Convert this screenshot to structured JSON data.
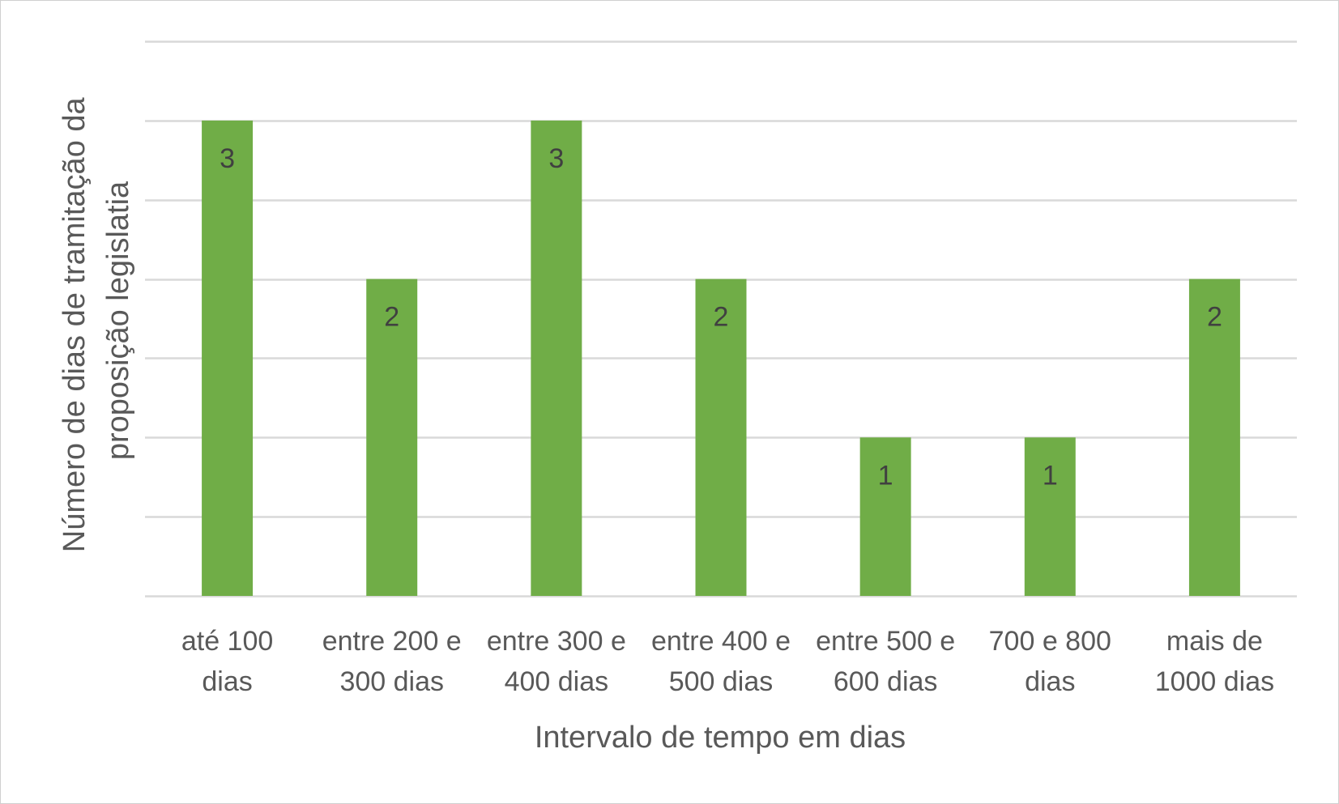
{
  "chart_data": {
    "type": "bar",
    "categories": [
      [
        "até  100",
        "dias"
      ],
      [
        "entre 200 e",
        "300 dias"
      ],
      [
        "entre 300 e",
        "400 dias"
      ],
      [
        "entre 400 e",
        "500 dias"
      ],
      [
        "entre 500 e",
        "600 dias"
      ],
      [
        "700 e 800",
        "dias"
      ],
      [
        "mais de",
        "1000 dias"
      ]
    ],
    "values": [
      3,
      2,
      3,
      2,
      1,
      1,
      2
    ],
    "data_labels": [
      "3",
      "2",
      "3",
      "2",
      "1",
      "1",
      "2"
    ],
    "xlabel": "Intervalo de tempo em dias",
    "ylabel_lines": [
      "Número de dias de tramitação da",
      "proposição legislatia"
    ],
    "ylim": [
      0,
      3.5
    ],
    "grid_step": 0.5,
    "grid": true,
    "bar_color": "#70ad47",
    "grid_color": "#d9d9d9"
  }
}
